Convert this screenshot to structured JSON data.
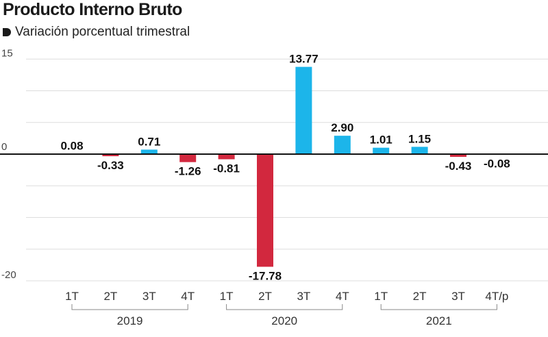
{
  "title": "Producto Interno Bruto",
  "subtitle": "Variación porcentual trimestral",
  "colors": {
    "positive": "#1cb5ea",
    "negative": "#d2283e",
    "axis": "#111111",
    "grid": "#dddddd"
  },
  "chart_data": {
    "type": "bar",
    "title": "Producto Interno Bruto",
    "subtitle": "Variación porcentual trimestral",
    "categories": [
      "1T",
      "2T",
      "3T",
      "4T",
      "1T",
      "2T",
      "3T",
      "4T",
      "1T",
      "2T",
      "3T",
      "4T/p"
    ],
    "values": [
      0.08,
      -0.33,
      0.71,
      -1.26,
      -0.81,
      -17.78,
      13.77,
      2.9,
      1.01,
      1.15,
      -0.43,
      -0.08
    ],
    "value_labels": [
      "0.08",
      "-0.33",
      "0.71",
      "-1.26",
      "-0.81",
      "-17.78",
      "13.77",
      "2.90",
      "1.01",
      "1.15",
      "-0.43",
      "-0.08"
    ],
    "groups": [
      {
        "label": "2019",
        "start": 0,
        "end": 3
      },
      {
        "label": "2020",
        "start": 4,
        "end": 7
      },
      {
        "label": "2021",
        "start": 8,
        "end": 11
      }
    ],
    "yticks": [
      {
        "value": 15,
        "label": "15"
      },
      {
        "value": 0,
        "label": "0"
      },
      {
        "value": -20,
        "label": "-20"
      }
    ],
    "ylim": [
      -20,
      15
    ],
    "grid": true
  }
}
